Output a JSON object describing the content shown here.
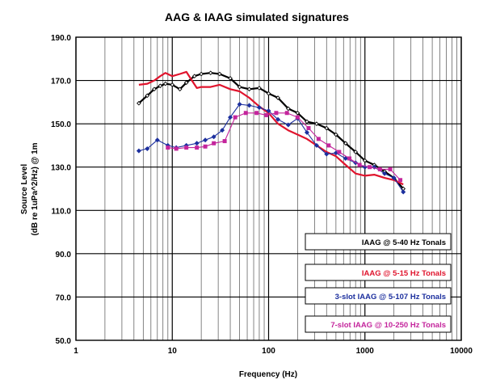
{
  "chart_data": {
    "type": "line",
    "title": "AAG & IAAG simulated signatures",
    "xlabel": "Frequency (Hz)",
    "ylabel_line1": "Source Level",
    "ylabel_line2": "(dB re 1uPa^2/Hz) @ 1m",
    "xscale": "log",
    "xlim": [
      1,
      10000
    ],
    "ylim": [
      50,
      190
    ],
    "x_ticks": [
      "1",
      "10",
      "100",
      "1000",
      "10000"
    ],
    "y_ticks": [
      "50.0",
      "70.0",
      "90.0",
      "110.0",
      "130.0",
      "150.0",
      "170.0",
      "190.0"
    ],
    "grid": true,
    "legend_position": "lower-right",
    "series": [
      {
        "name": "IAAG @ 5-40 Hz Tonals",
        "color": "#000000",
        "marker": "diamond-small",
        "x": [
          4.5,
          5.5,
          6.5,
          7.5,
          8.5,
          10,
          12,
          14,
          17,
          20,
          25,
          31,
          40,
          50,
          63,
          80,
          100,
          125,
          160,
          200,
          250,
          315,
          400,
          500,
          630,
          800,
          1000,
          1250,
          1600,
          2000,
          2500
        ],
        "y": [
          159.5,
          163,
          166,
          167.5,
          168.5,
          168,
          166,
          169,
          172,
          173,
          173.5,
          173,
          171,
          167,
          166,
          166.5,
          164,
          162,
          157,
          155,
          151,
          150,
          148,
          145,
          141,
          137,
          133,
          131,
          128,
          125,
          120
        ]
      },
      {
        "name": "IAAG @ 5-15 Hz Tonals",
        "color": "#e0142d",
        "marker": "none",
        "x": [
          4.5,
          5.5,
          6.5,
          7.5,
          8.5,
          10,
          12,
          14,
          16,
          18,
          20,
          25,
          31,
          40,
          50,
          63,
          80,
          100,
          125,
          160,
          200,
          250,
          315,
          400,
          500,
          630,
          800,
          1000,
          1250,
          1600,
          2000,
          2500
        ],
        "y": [
          168,
          168.5,
          170,
          172,
          173.5,
          172,
          173,
          174,
          170,
          166.5,
          167,
          167,
          168,
          166,
          165,
          162,
          158,
          155,
          150,
          147,
          145,
          143,
          140,
          137,
          135,
          131,
          127,
          126,
          126.5,
          125,
          124,
          122
        ]
      },
      {
        "name": "3-slot IAAG @ 5-107 Hz Tonals",
        "color": "#1c2f9e",
        "marker": "diamond",
        "x": [
          4.5,
          5.5,
          7,
          9,
          11,
          14,
          18,
          22,
          27,
          33,
          40,
          50,
          63,
          80,
          100,
          125,
          160,
          200,
          250,
          315,
          400,
          500,
          630,
          800,
          1000,
          1250,
          1600,
          2000,
          2500
        ],
        "y": [
          137.5,
          138.5,
          142.5,
          140,
          139,
          140,
          141,
          142.5,
          144,
          147,
          153,
          159,
          158.5,
          157.5,
          156,
          152,
          149.5,
          152.5,
          146,
          140,
          136,
          136.5,
          134,
          132,
          130,
          130,
          127,
          125,
          118.5
        ]
      },
      {
        "name": "7-slot IAAG @ 10-250 Hz Tonals",
        "color": "#c4259c",
        "marker": "square",
        "x": [
          9,
          11,
          14,
          18,
          22,
          27,
          35,
          45,
          58,
          75,
          95,
          120,
          155,
          200,
          260,
          330,
          420,
          540,
          690,
          880,
          1120,
          1430,
          1830,
          2330
        ],
        "y": [
          139,
          138.5,
          139,
          139,
          139.5,
          141,
          142,
          153,
          155,
          155,
          154,
          155,
          155,
          153,
          148,
          143,
          140,
          137,
          134,
          131,
          130,
          129,
          129,
          124
        ]
      }
    ]
  }
}
